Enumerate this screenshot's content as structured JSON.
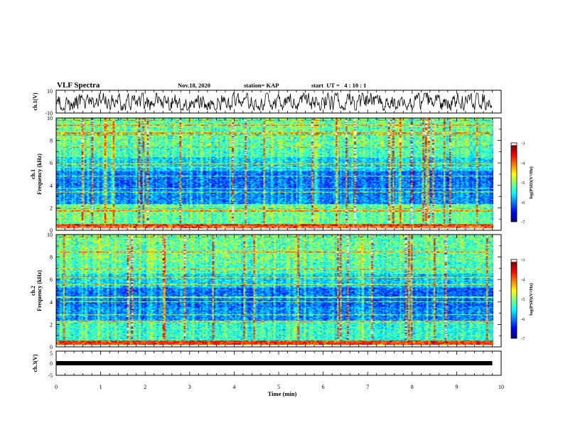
{
  "header": {
    "title": "VLF Spectra",
    "date": "Nov.18, 2020",
    "station": "station= KAP",
    "start_ut": "start  UT =   4 : 10 : 1"
  },
  "colors": {
    "waveform": "#000000",
    "colormap": [
      "#00007f",
      "#0000ff",
      "#0080ff",
      "#00ffff",
      "#00ff80",
      "#80ff00",
      "#ffff00",
      "#ff8000",
      "#ff0000",
      "#ffffff"
    ]
  },
  "chart_data": [
    {
      "type": "line",
      "panel": "ch1-waveform",
      "ylabel": "ch.1(V)",
      "ylim": [
        -10,
        10
      ],
      "ytick_labels": [
        "10",
        "-10"
      ],
      "xlim": [
        0,
        10
      ],
      "data_span_min": [
        0,
        9.8
      ]
    },
    {
      "type": "heatmap",
      "panel": "ch1-spectrogram",
      "ylabel": "ch.1\nFrequency (kHz)",
      "ylim": [
        0,
        10
      ],
      "ytick_labels": [
        "0",
        "2",
        "4",
        "6",
        "8",
        "10"
      ],
      "xlim": [
        0,
        10
      ],
      "data_span_min": [
        0,
        9.8
      ],
      "colorbar": {
        "label": "log(PSD)(V²/Hz)",
        "range": [
          -7,
          -3
        ],
        "tick_labels": [
          "-3",
          "-4",
          "-5",
          "-6",
          "-7"
        ]
      }
    },
    {
      "type": "heatmap",
      "panel": "ch2-spectrogram",
      "ylabel": "ch.2\nFrequency (kHz)",
      "ylim": [
        0,
        10
      ],
      "ytick_labels": [
        "0",
        "2",
        "4",
        "6",
        "8",
        "10"
      ],
      "xlim": [
        0,
        10
      ],
      "data_span_min": [
        0,
        9.8
      ],
      "colorbar": {
        "label": "log(PSD)(V²/Hz)",
        "range": [
          -7,
          -3
        ],
        "tick_labels": [
          "-3",
          "-4",
          "-5",
          "-6",
          "-7"
        ]
      }
    },
    {
      "type": "line",
      "panel": "ch3-waveform",
      "ylabel": "ch.3(V)",
      "ylim": [
        -5,
        5
      ],
      "ytick_labels": [
        "5",
        "0",
        "-5"
      ],
      "xlim": [
        0,
        10
      ],
      "data_span_min": [
        0,
        9.8
      ],
      "values": [
        0
      ]
    }
  ],
  "xaxis": {
    "label": "Time (min)",
    "tick_labels": [
      "0",
      "1",
      "2",
      "3",
      "4",
      "5",
      "6",
      "7",
      "8",
      "9",
      "10"
    ]
  }
}
